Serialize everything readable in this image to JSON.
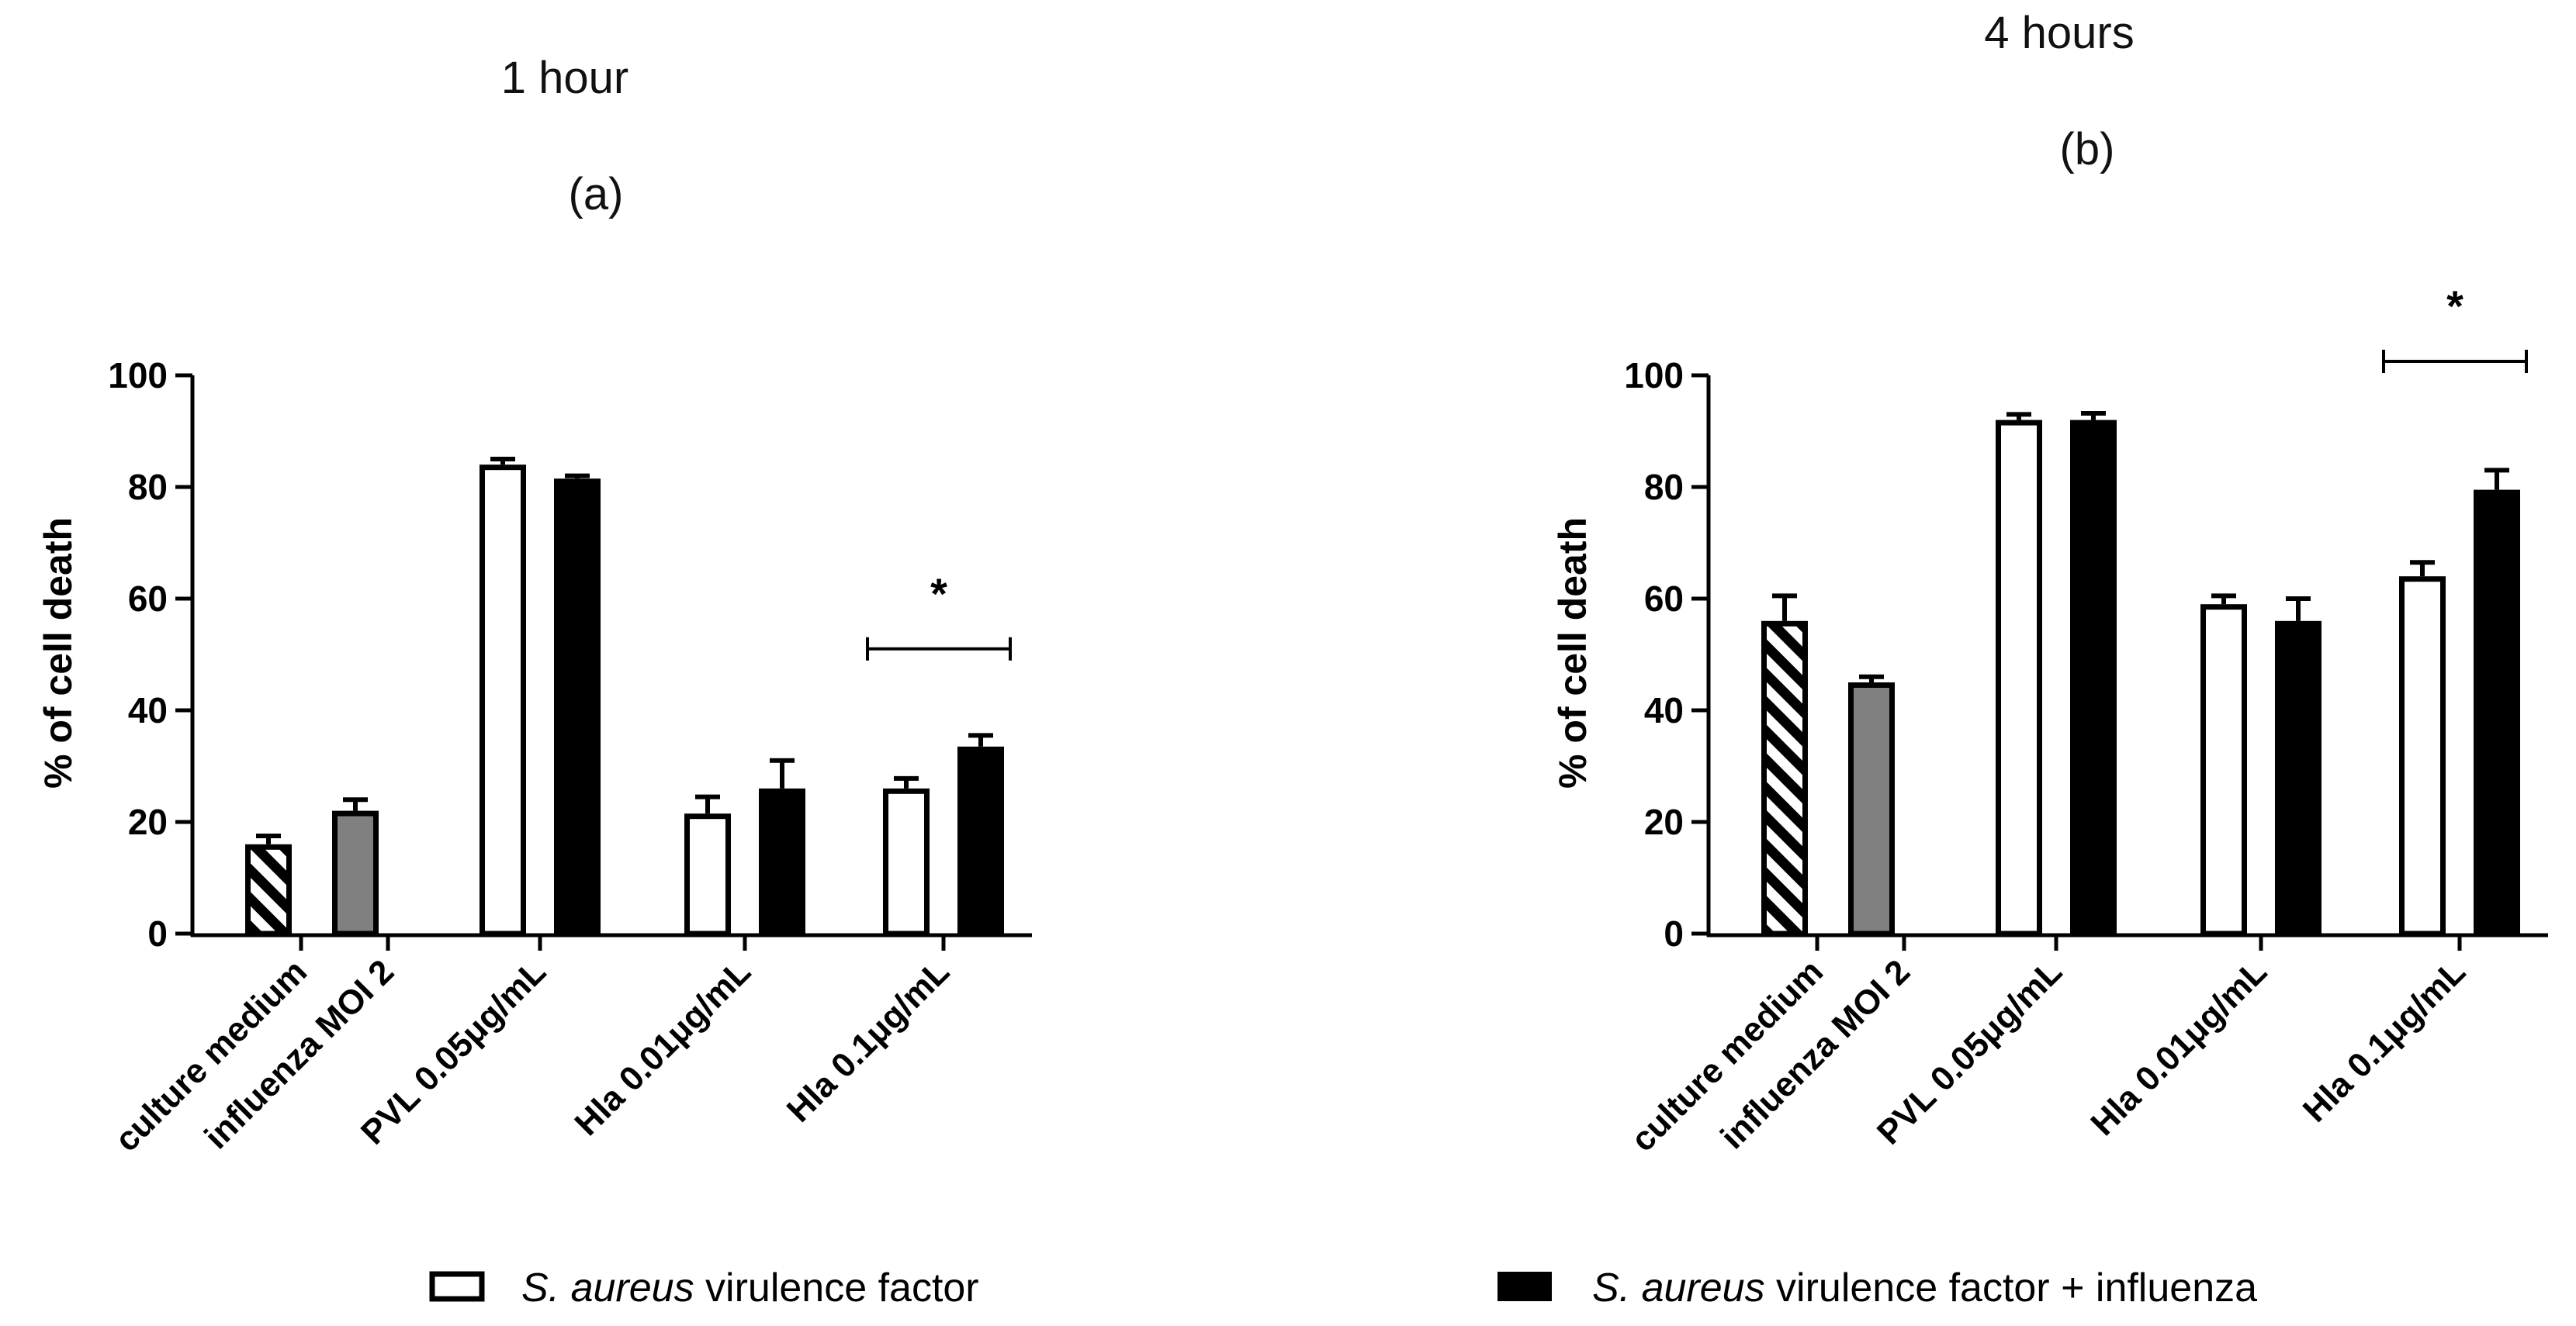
{
  "chart_data": [
    {
      "type": "bar",
      "title": "1 hour",
      "subtitle": "(a)",
      "ylabel": "% of cell death",
      "ylim": [
        0,
        100
      ],
      "yticks": [
        0,
        20,
        40,
        60,
        80,
        100
      ],
      "categories": [
        "culture medium",
        "influenza MOI 2",
        "PVL 0.05μg/mL",
        "Hla 0.01μg/mL",
        "Hla 0.1μg/mL"
      ],
      "bars": [
        {
          "category": "culture medium",
          "style": "hatched",
          "value": 16,
          "error": 1.5
        },
        {
          "category": "influenza MOI 2",
          "style": "gray",
          "value": 22,
          "error": 2
        },
        {
          "category": "PVL 0.05μg/mL",
          "style": "white",
          "value": 84,
          "error": 1
        },
        {
          "category": "PVL 0.05μg/mL",
          "style": "black",
          "value": 81.5,
          "error": 0.5
        },
        {
          "category": "Hla 0.01μg/mL",
          "style": "white",
          "value": 21.5,
          "error": 3
        },
        {
          "category": "Hla 0.01μg/mL",
          "style": "black",
          "value": 26,
          "error": 5
        },
        {
          "category": "Hla 0.1μg/mL",
          "style": "white",
          "value": 26,
          "error": 1.8
        },
        {
          "category": "Hla 0.1μg/mL",
          "style": "black",
          "value": 33.5,
          "error": 2
        }
      ],
      "significance": [
        {
          "category": "Hla 0.1μg/mL",
          "label": "*",
          "y": 51
        }
      ]
    },
    {
      "type": "bar",
      "title": "4 hours",
      "subtitle": "(b)",
      "ylabel": "% of cell death",
      "ylim": [
        0,
        100
      ],
      "yticks": [
        0,
        20,
        40,
        60,
        80,
        100
      ],
      "categories": [
        "culture medium",
        "influenza MOI 2",
        "PVL 0.05μg/mL",
        "Hla 0.01μg/mL",
        "Hla 0.1μg/mL"
      ],
      "bars": [
        {
          "category": "culture medium",
          "style": "hatched",
          "value": 56,
          "error": 4.5
        },
        {
          "category": "influenza MOI 2",
          "style": "gray",
          "value": 45,
          "error": 1
        },
        {
          "category": "PVL 0.05μg/mL",
          "style": "white",
          "value": 92,
          "error": 1
        },
        {
          "category": "PVL 0.05μg/mL",
          "style": "black",
          "value": 92,
          "error": 1.2
        },
        {
          "category": "Hla 0.01μg/mL",
          "style": "white",
          "value": 59,
          "error": 1.5
        },
        {
          "category": "Hla 0.01μg/mL",
          "style": "black",
          "value": 56,
          "error": 4
        },
        {
          "category": "Hla 0.1μg/mL",
          "style": "white",
          "value": 64,
          "error": 2.5
        },
        {
          "category": "Hla 0.1μg/mL",
          "style": "black",
          "value": 79.5,
          "error": 3.5
        }
      ],
      "significance": [
        {
          "category": "Hla 0.1μg/mL",
          "label": "*",
          "y": 102.5
        }
      ]
    }
  ],
  "legend": [
    {
      "style": "white",
      "name_italic": "S. aureus",
      "name_rest": " virulence factor"
    },
    {
      "style": "black",
      "name_italic": "S. aureus",
      "name_rest": " virulence factor + influenza"
    }
  ]
}
